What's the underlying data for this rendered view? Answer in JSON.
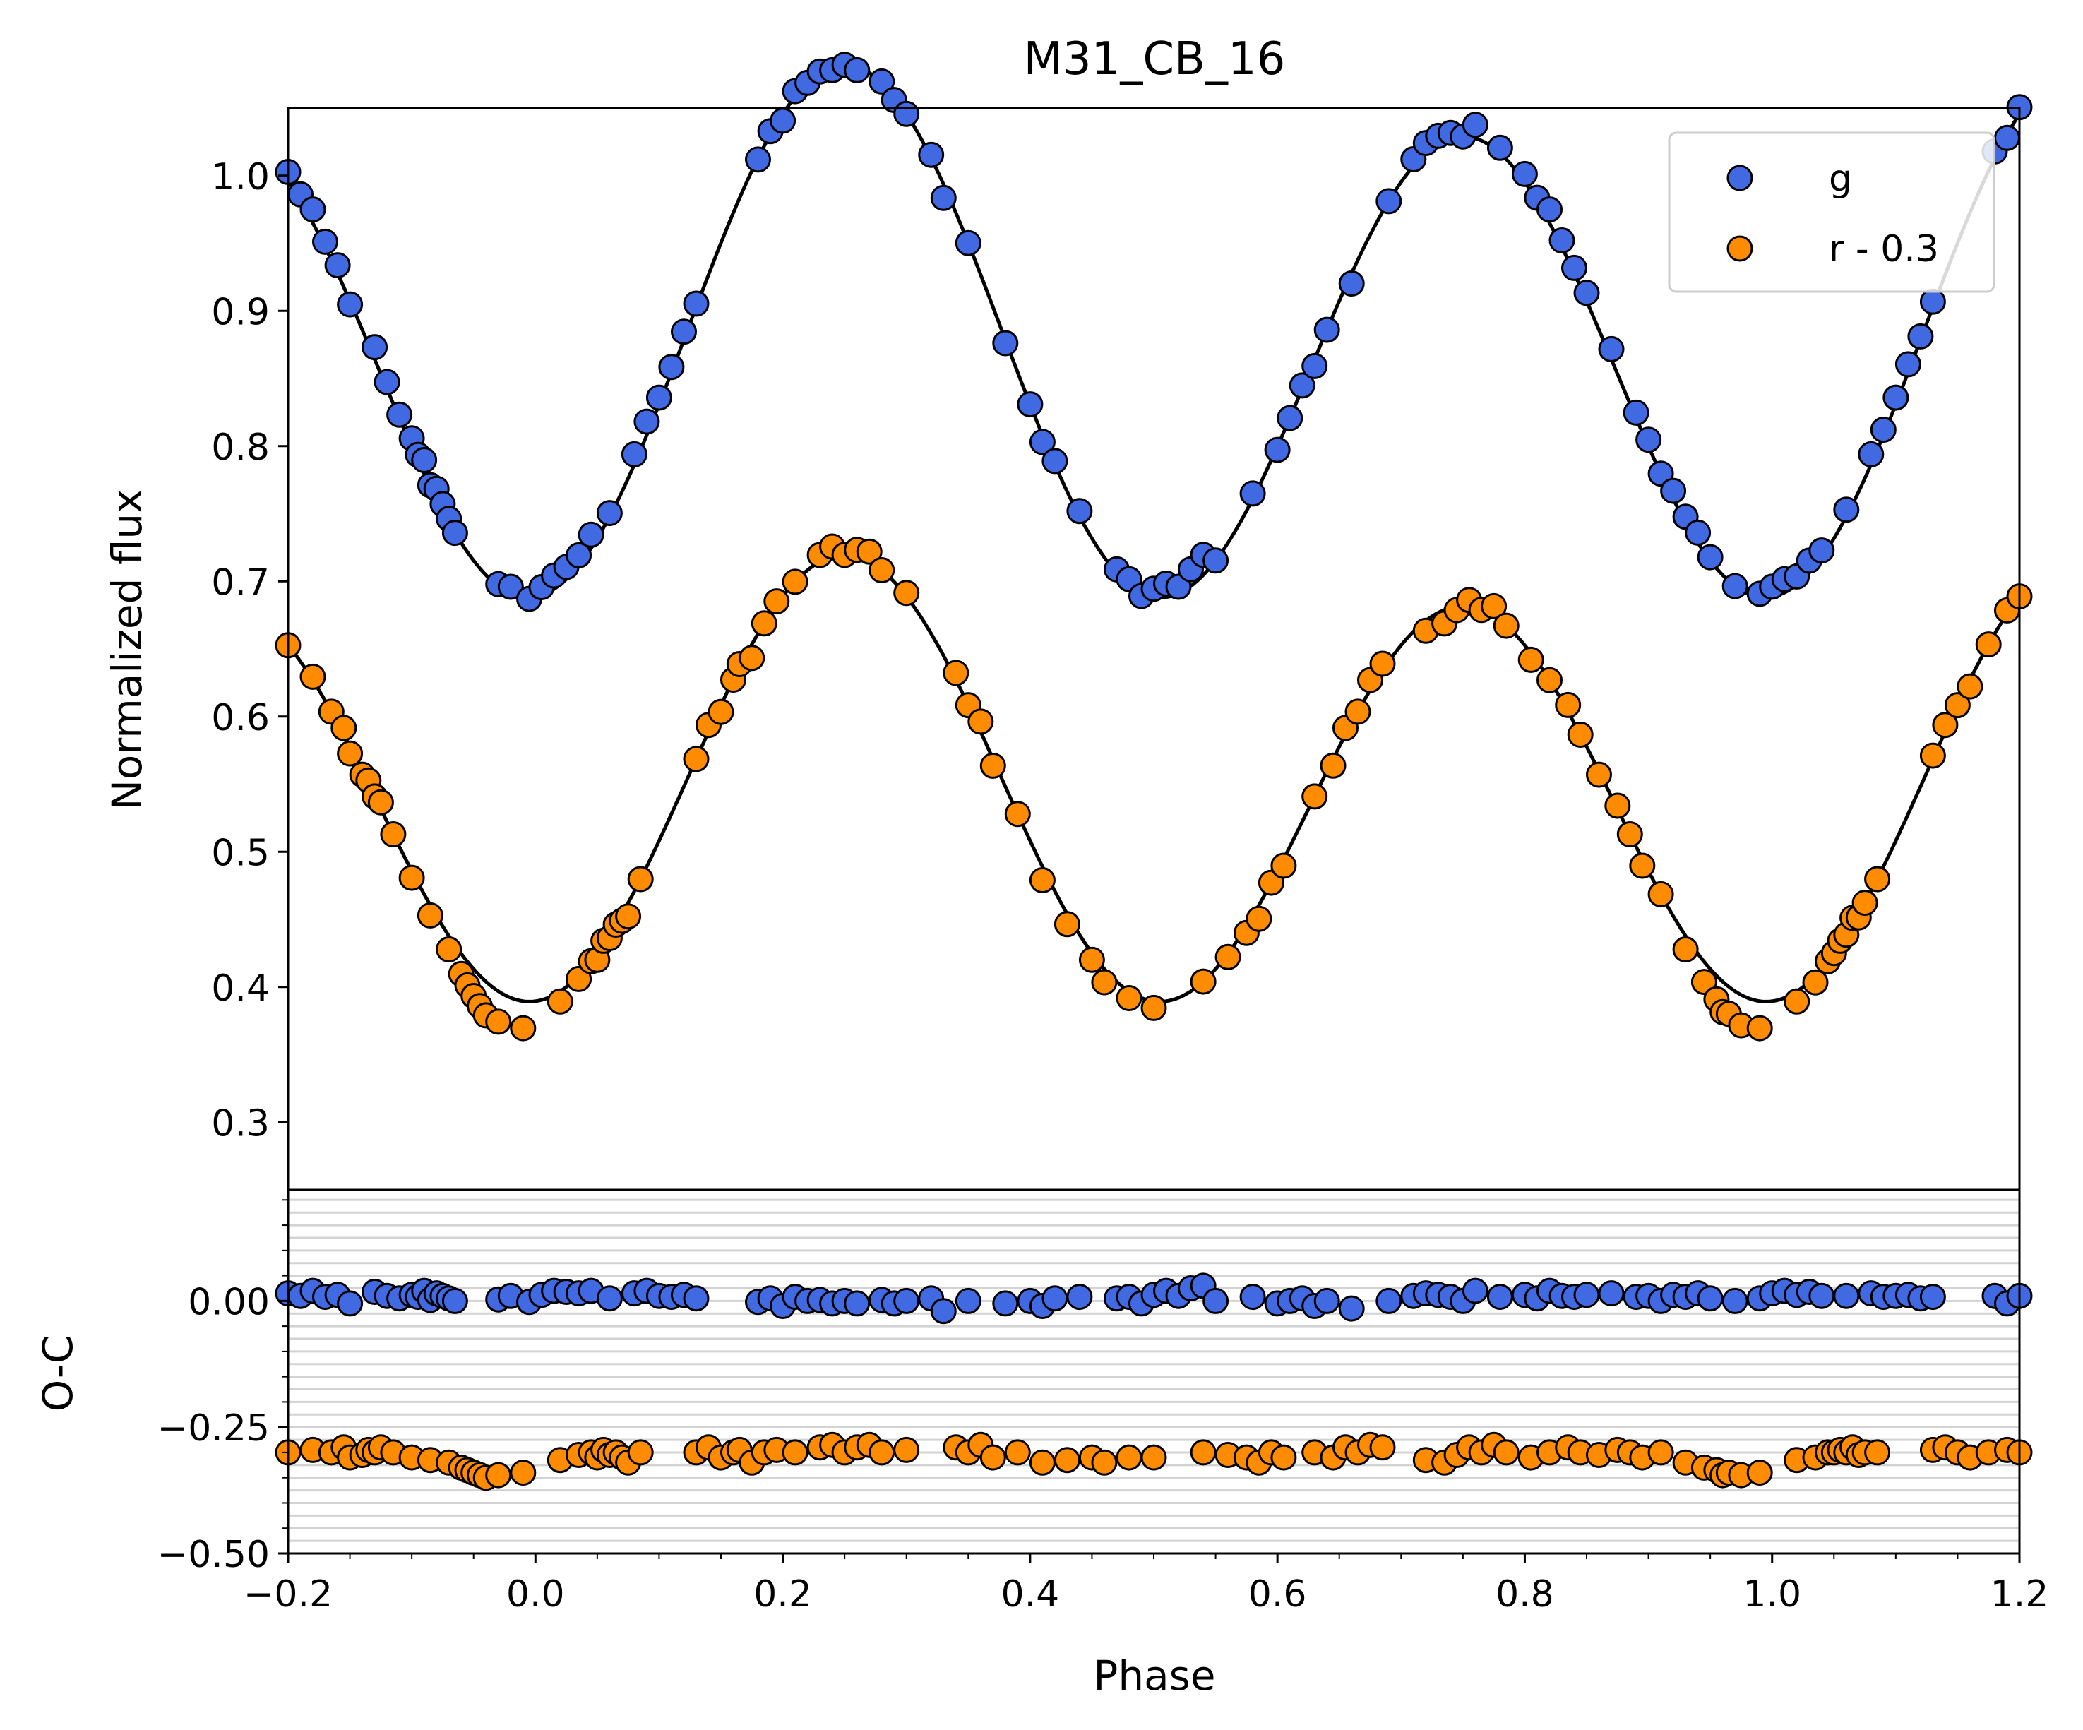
{
  "chart_data": [
    {
      "type": "scatter",
      "panel": "light-curve",
      "title": "M31_CB_16",
      "xlabel": "Phase",
      "ylabel": "Normalized flux",
      "xlim": [
        -0.2,
        1.2
      ],
      "ylim": [
        0.25,
        1.05
      ],
      "x_ticks": [
        -0.2,
        0.0,
        0.2,
        0.4,
        0.6,
        0.8,
        1.0,
        1.2
      ],
      "y_ticks": [
        0.3,
        0.4,
        0.5,
        0.6,
        0.7,
        0.8,
        0.9,
        1.0
      ],
      "y_tick_labels": [
        "0.3",
        "0.4",
        "0.5",
        "0.6",
        "0.7",
        "0.8",
        "0.9",
        "1.0"
      ],
      "legend_position": "top-right",
      "series": [
        {
          "name": "g",
          "color": "#4169e1",
          "model": {
            "mean": 0.872,
            "a1": 0.0265,
            "a2": -0.1835
          },
          "phases": [
            -0.2,
            -0.19,
            -0.18,
            -0.17,
            -0.16,
            -0.15,
            -0.13,
            -0.12,
            -0.11,
            -0.1,
            -0.095,
            -0.09,
            -0.085,
            -0.08,
            -0.075,
            -0.07,
            -0.065,
            -0.03,
            -0.02,
            -0.005,
            0.005,
            0.015,
            0.025,
            0.035,
            0.045,
            0.06,
            0.08,
            0.09,
            0.1,
            0.11,
            0.12,
            0.13,
            0.18,
            0.19,
            0.2,
            0.21,
            0.22,
            0.23,
            0.24,
            0.25,
            0.26,
            0.28,
            0.29,
            0.3,
            0.32,
            0.33,
            0.35,
            0.38,
            0.4,
            0.41,
            0.42,
            0.44,
            0.47,
            0.48,
            0.49,
            0.5,
            0.51,
            0.52,
            0.53,
            0.54,
            0.55,
            0.58,
            0.6,
            0.61,
            0.62,
            0.63,
            0.64,
            0.66,
            0.69,
            0.71,
            0.72,
            0.73,
            0.74,
            0.75,
            0.76,
            0.78,
            0.8,
            0.81,
            0.82,
            0.83,
            0.84,
            0.85,
            0.87,
            0.89,
            0.9,
            0.91,
            0.92,
            0.93,
            0.94,
            0.95,
            0.97,
            0.99,
            1.0,
            1.01,
            1.02,
            1.03,
            1.04,
            1.06,
            1.08,
            1.09,
            1.1,
            1.11,
            1.12,
            1.13,
            1.18,
            1.19,
            1.2
          ],
          "residuals": [
            0.015,
            0.01,
            0.02,
            0.008,
            0.012,
            -0.005,
            0.018,
            0.01,
            0.005,
            0.012,
            0.008,
            0.02,
            0.002,
            0.015,
            0.01,
            0.005,
            0.0,
            0.003,
            0.01,
            -0.002,
            0.012,
            0.02,
            0.018,
            0.015,
            0.02,
            0.005,
            0.015,
            0.02,
            0.01,
            0.008,
            0.012,
            0.005,
            -0.002,
            0.005,
            -0.01,
            0.008,
            0.0,
            0.002,
            -0.005,
            0.0,
            -0.005,
            0.002,
            -0.005,
            0.0,
            0.005,
            -0.02,
            0.0,
            -0.005,
            0.0,
            -0.01,
            0.005,
            0.008,
            0.005,
            0.008,
            -0.005,
            0.012,
            0.02,
            0.01,
            0.025,
            0.03,
            0.0,
            0.008,
            -0.005,
            0.0,
            0.005,
            -0.01,
            0.0,
            -0.015,
            0.0,
            0.01,
            0.015,
            0.012,
            0.008,
            0.0,
            0.02,
            0.008,
            0.012,
            0.005,
            0.02,
            0.01,
            0.008,
            0.012,
            0.015,
            0.008,
            0.01,
            0.0,
            0.012,
            0.008,
            0.015,
            0.005,
            0.0,
            0.005,
            0.015,
            0.02,
            0.012,
            0.018,
            0.01,
            0.01,
            0.015,
            0.008,
            0.01,
            0.012,
            0.005,
            0.008,
            0.01,
            -0.005,
            0.01
          ]
        },
        {
          "name": "r - 0.3",
          "color": "#ff8c00",
          "model": {
            "mean": 0.545,
            "a1": 0.019,
            "a2": -0.1555
          },
          "phases": [
            -0.2,
            -0.18,
            -0.165,
            -0.155,
            -0.15,
            -0.14,
            -0.135,
            -0.13,
            -0.125,
            -0.115,
            -0.1,
            -0.085,
            -0.07,
            -0.06,
            -0.055,
            -0.05,
            -0.045,
            -0.04,
            -0.03,
            -0.01,
            0.02,
            0.035,
            0.045,
            0.05,
            0.055,
            0.06,
            0.065,
            0.07,
            0.075,
            0.085,
            0.13,
            0.14,
            0.15,
            0.16,
            0.165,
            0.175,
            0.185,
            0.195,
            0.21,
            0.23,
            0.24,
            0.25,
            0.26,
            0.27,
            0.28,
            0.3,
            0.34,
            0.35,
            0.36,
            0.37,
            0.39,
            0.41,
            0.43,
            0.45,
            0.46,
            0.48,
            0.5,
            0.54,
            0.56,
            0.575,
            0.585,
            0.595,
            0.605,
            0.63,
            0.645,
            0.655,
            0.665,
            0.675,
            0.685,
            0.72,
            0.735,
            0.745,
            0.755,
            0.765,
            0.775,
            0.785,
            0.805,
            0.82,
            0.835,
            0.845,
            0.86,
            0.875,
            0.885,
            0.895,
            0.91,
            0.93,
            0.945,
            0.955,
            0.96,
            0.965,
            0.975,
            0.99,
            1.02,
            1.035,
            1.045,
            1.05,
            1.055,
            1.06,
            1.065,
            1.07,
            1.075,
            1.085,
            1.13,
            1.14,
            1.15,
            1.16,
            1.175,
            1.19,
            1.2
          ],
          "residuals": [
            -0.3,
            -0.295,
            -0.3,
            -0.29,
            -0.31,
            -0.305,
            -0.295,
            -0.3,
            -0.29,
            -0.3,
            -0.31,
            -0.315,
            -0.32,
            -0.33,
            -0.335,
            -0.34,
            -0.345,
            -0.35,
            -0.345,
            -0.34,
            -0.315,
            -0.305,
            -0.3,
            -0.31,
            -0.295,
            -0.305,
            -0.3,
            -0.31,
            -0.32,
            -0.3,
            -0.3,
            -0.29,
            -0.31,
            -0.3,
            -0.295,
            -0.32,
            -0.3,
            -0.295,
            -0.3,
            -0.29,
            -0.285,
            -0.3,
            -0.29,
            -0.285,
            -0.3,
            -0.295,
            -0.29,
            -0.3,
            -0.285,
            -0.31,
            -0.3,
            -0.32,
            -0.315,
            -0.31,
            -0.32,
            -0.31,
            -0.31,
            -0.3,
            -0.305,
            -0.31,
            -0.32,
            -0.3,
            -0.31,
            -0.3,
            -0.31,
            -0.29,
            -0.3,
            -0.285,
            -0.29,
            -0.315,
            -0.32,
            -0.305,
            -0.29,
            -0.3,
            -0.285,
            -0.3,
            -0.31,
            -0.3,
            -0.29,
            -0.3,
            -0.305,
            -0.295,
            -0.3,
            -0.31,
            -0.3,
            -0.32,
            -0.33,
            -0.335,
            -0.345,
            -0.34,
            -0.345,
            -0.34,
            -0.315,
            -0.31,
            -0.3,
            -0.3,
            -0.295,
            -0.3,
            -0.29,
            -0.305,
            -0.3,
            -0.3,
            -0.295,
            -0.29,
            -0.3,
            -0.31,
            -0.3,
            -0.295,
            -0.3
          ]
        }
      ]
    },
    {
      "type": "scatter",
      "panel": "residuals",
      "xlabel": "Phase",
      "ylabel": "O-C",
      "xlim": [
        -0.2,
        1.2
      ],
      "ylim": [
        -0.5,
        0.22
      ],
      "x_ticks": [
        -0.2,
        0.0,
        0.2,
        0.4,
        0.6,
        0.8,
        1.0,
        1.2
      ],
      "x_tick_labels": [
        "−0.2",
        "0.0",
        "0.2",
        "0.4",
        "0.6",
        "0.8",
        "1.0",
        "1.2"
      ],
      "y_ticks": [
        0.0,
        -0.25,
        -0.5
      ],
      "y_tick_labels": [
        "0.00",
        "−0.25",
        "−0.50"
      ],
      "grid": true
    }
  ],
  "legend": {
    "items": [
      {
        "label": "g",
        "color": "#4169e1"
      },
      {
        "label": "r - 0.3",
        "color": "#ff8c00"
      }
    ]
  }
}
